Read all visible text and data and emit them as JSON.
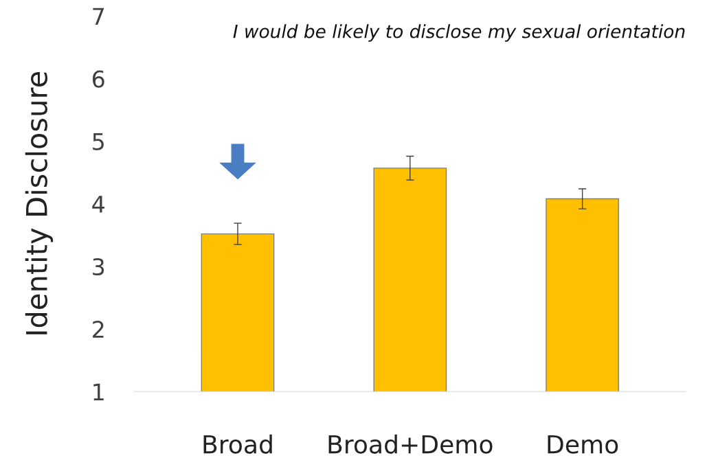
{
  "chart_data": {
    "type": "bar",
    "ylabel": "Identity Disclosure",
    "annotations": [
      "I would be likely to disclose my sexual orientation"
    ],
    "categories": [
      "Broad",
      "Broad+Demo",
      "Demo"
    ],
    "values": [
      3.52,
      4.57,
      4.08
    ],
    "errors": [
      0.17,
      0.19,
      0.16
    ],
    "color": "#ffc000",
    "ylim": [
      1,
      7
    ],
    "yticks": [
      1,
      2,
      3,
      4,
      5,
      6,
      7
    ],
    "grid": false,
    "legend": false
  }
}
